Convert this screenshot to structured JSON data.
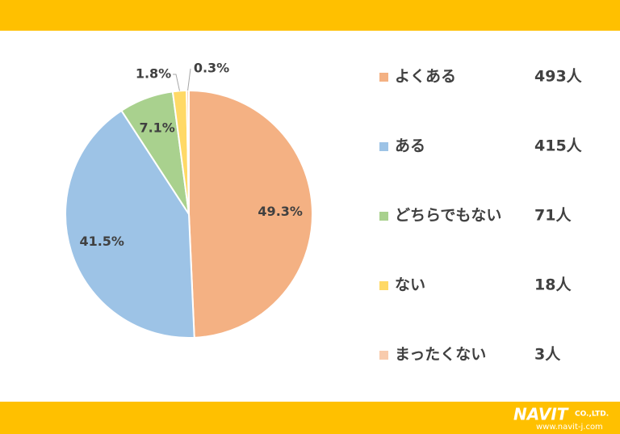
{
  "chart_data": {
    "type": "pie",
    "categories": [
      "よくある",
      "ある",
      "どちらでもない",
      "ない",
      "まったくない"
    ],
    "values": [
      49.3,
      41.5,
      7.1,
      1.8,
      0.3
    ],
    "value_labels": [
      "49.3%",
      "41.5%",
      "7.1%",
      "1.8%",
      "0.3%"
    ],
    "colors": [
      "#f4b183",
      "#9dc3e6",
      "#a9d18e",
      "#ffd966",
      "#f8cbad"
    ],
    "legend_counts": [
      "493人",
      "415人",
      "71人",
      "18人",
      "3人"
    ],
    "legend": "right"
  },
  "footer": {
    "brand": "NAVIT",
    "company": "CO.,LTD.",
    "url": "www.navit-j.com"
  }
}
